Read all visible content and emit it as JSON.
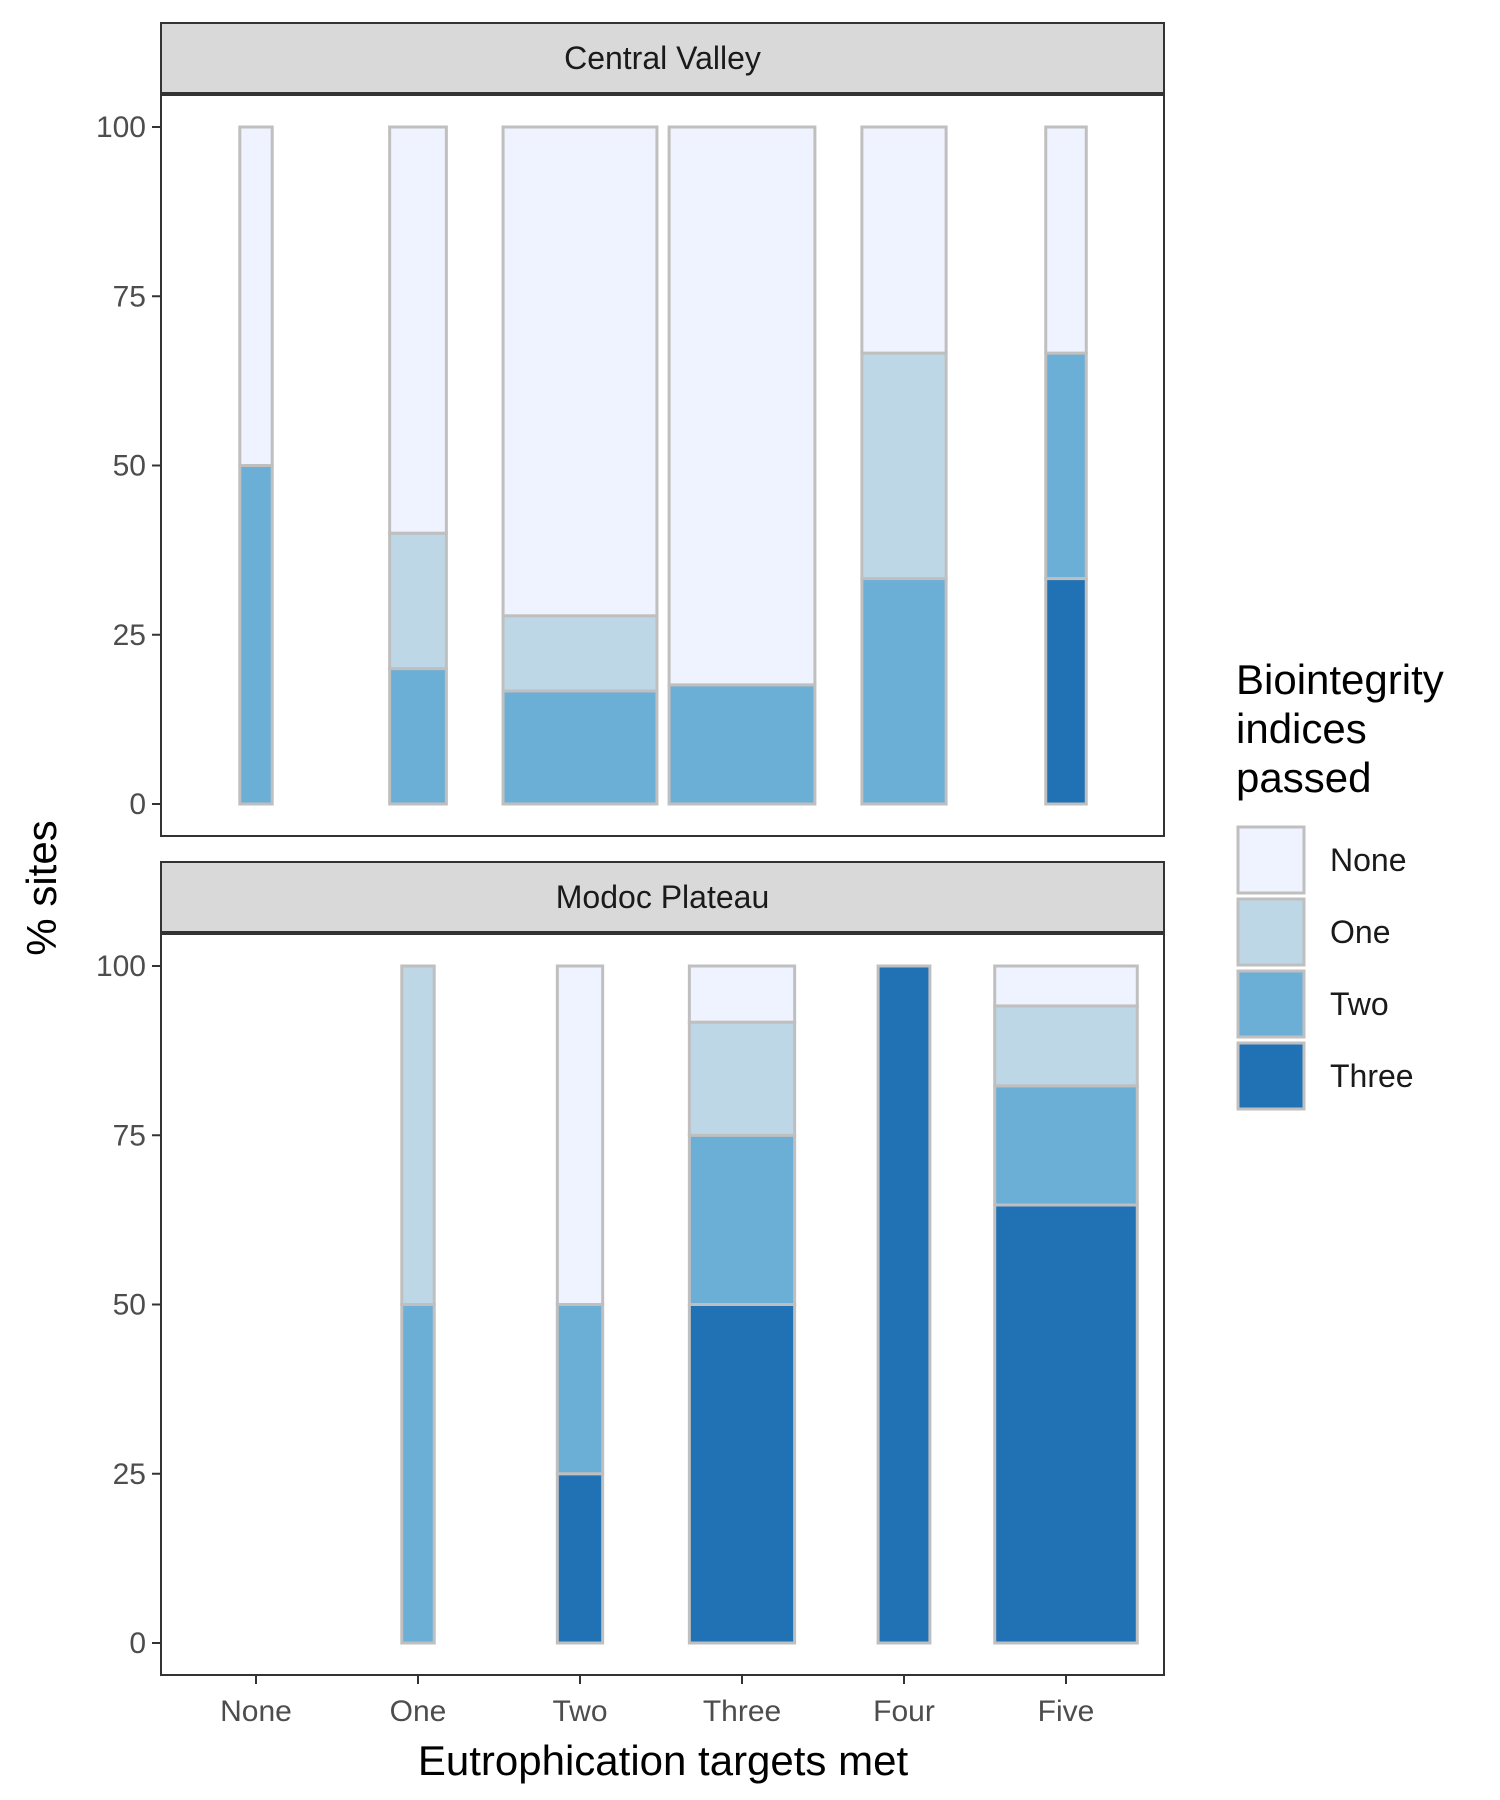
{
  "chart_data": {
    "type": "bar",
    "stacked": true,
    "variable_width": true,
    "xlabel": "Eutrophication targets met",
    "ylabel": "% sites",
    "ylim": [
      0,
      100
    ],
    "yticks": [
      0,
      25,
      50,
      75,
      100
    ],
    "categories": [
      "None",
      "One",
      "Two",
      "Three",
      "Four",
      "Five"
    ],
    "legend": {
      "title_lines": [
        "Biointegrity",
        "indices",
        "passed"
      ],
      "position": "right",
      "entries": [
        {
          "name": "None",
          "color": "#eff3ff"
        },
        {
          "name": "One",
          "color": "#bdd7e7"
        },
        {
          "name": "Two",
          "color": "#6baed6"
        },
        {
          "name": "Three",
          "color": "#2171b5"
        }
      ]
    },
    "bar_outline_color": "#bfbfbf",
    "panels": [
      {
        "title": "Central Valley",
        "bars": [
          {
            "category": "None",
            "relative_width": 0.2,
            "segments": [
              {
                "level": "Two",
                "value": 50
              },
              {
                "level": "None",
                "value": 50
              }
            ]
          },
          {
            "category": "One",
            "relative_width": 0.35,
            "segments": [
              {
                "level": "Two",
                "value": 20
              },
              {
                "level": "One",
                "value": 20
              },
              {
                "level": "None",
                "value": 60
              }
            ]
          },
          {
            "category": "Two",
            "relative_width": 0.95,
            "segments": [
              {
                "level": "Two",
                "value": 16.7
              },
              {
                "level": "One",
                "value": 11.1
              },
              {
                "level": "None",
                "value": 72.2
              }
            ]
          },
          {
            "category": "Three",
            "relative_width": 0.9,
            "segments": [
              {
                "level": "Two",
                "value": 17.6
              },
              {
                "level": "None",
                "value": 82.4
              }
            ]
          },
          {
            "category": "Four",
            "relative_width": 0.52,
            "segments": [
              {
                "level": "Two",
                "value": 33.3
              },
              {
                "level": "One",
                "value": 33.3
              },
              {
                "level": "None",
                "value": 33.4
              }
            ]
          },
          {
            "category": "Five",
            "relative_width": 0.25,
            "segments": [
              {
                "level": "Three",
                "value": 33.3
              },
              {
                "level": "Two",
                "value": 33.3
              },
              {
                "level": "None",
                "value": 33.4
              }
            ]
          }
        ]
      },
      {
        "title": "Modoc Plateau",
        "bars": [
          {
            "category": "One",
            "relative_width": 0.2,
            "segments": [
              {
                "level": "Two",
                "value": 50
              },
              {
                "level": "One",
                "value": 50
              }
            ]
          },
          {
            "category": "Two",
            "relative_width": 0.28,
            "segments": [
              {
                "level": "Three",
                "value": 25
              },
              {
                "level": "Two",
                "value": 25
              },
              {
                "level": "None",
                "value": 50
              }
            ]
          },
          {
            "category": "Three",
            "relative_width": 0.65,
            "segments": [
              {
                "level": "Three",
                "value": 50
              },
              {
                "level": "Two",
                "value": 25
              },
              {
                "level": "One",
                "value": 16.7
              },
              {
                "level": "None",
                "value": 8.3
              }
            ]
          },
          {
            "category": "Four",
            "relative_width": 0.32,
            "segments": [
              {
                "level": "Three",
                "value": 100
              }
            ]
          },
          {
            "category": "Five",
            "relative_width": 0.88,
            "segments": [
              {
                "level": "Three",
                "value": 64.7
              },
              {
                "level": "Two",
                "value": 17.6
              },
              {
                "level": "One",
                "value": 11.8
              },
              {
                "level": "None",
                "value": 5.9
              }
            ]
          }
        ]
      }
    ]
  }
}
